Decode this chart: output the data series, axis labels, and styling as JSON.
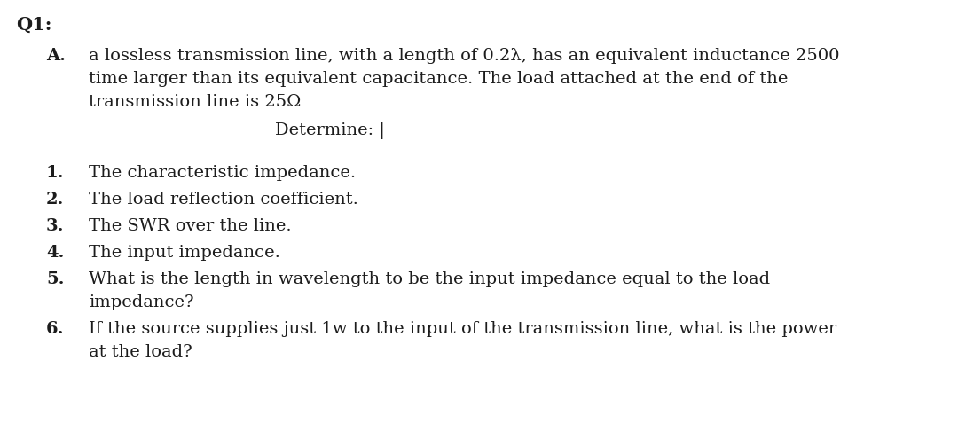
{
  "bg_color": "#ffffff",
  "text_color": "#1c1c1c",
  "title": "Q1:",
  "section_a_label": "A.",
  "section_a_line1": "a lossless transmission line, with a length of 0.2λ, has an equivalent inductance 2500",
  "section_a_line2": "time larger than its equivalent capacitance. The load attached at the end of the",
  "section_a_line3": "transmission line is 25Ω",
  "section_a_determine": "Determine: |",
  "items": [
    "The characteristic impedance.",
    "The load reflection coefficient.",
    "The SWR over the line.",
    "The input impedance.",
    [
      "What is the length in wavelength to be the input impedance equal to the load",
      "impedance?"
    ],
    [
      "If the source supplies just 1w to the input of the transmission line, what is the power",
      "at the load?"
    ]
  ],
  "font_size_title": 15,
  "font_size_body": 14,
  "font_family": "serif"
}
